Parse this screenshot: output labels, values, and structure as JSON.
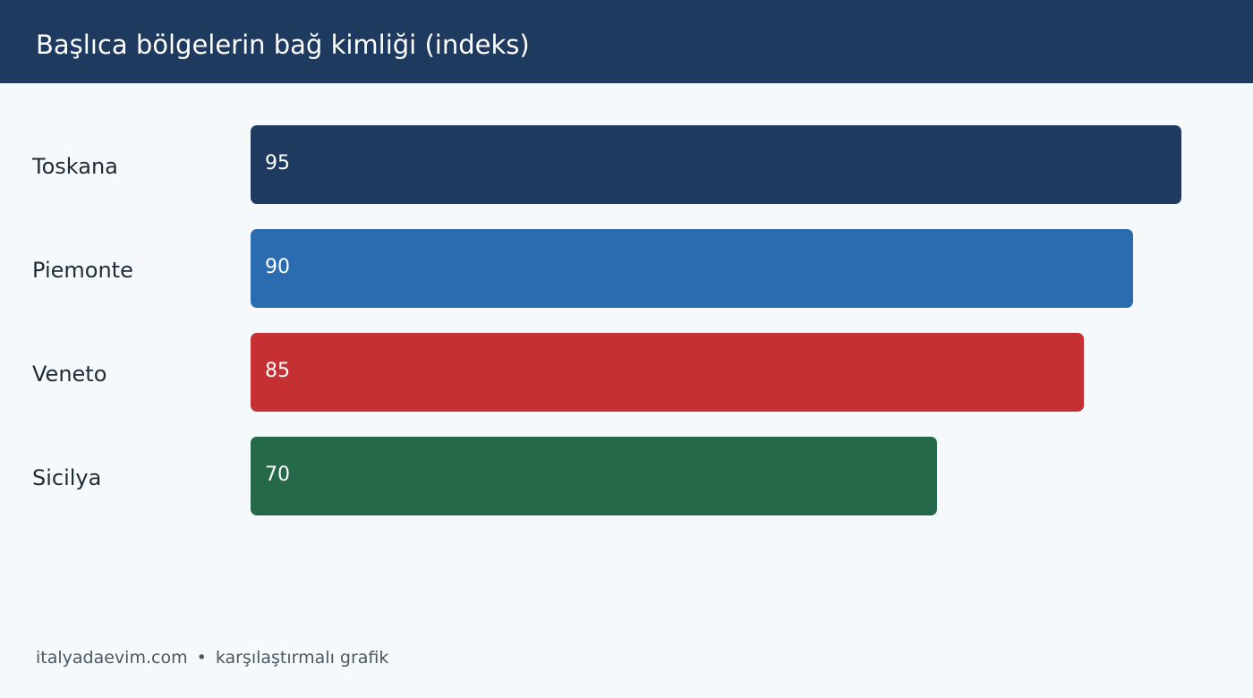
{
  "header": {
    "title": "Başlıca bölgelerin bağ kimliği (indeks)"
  },
  "chart_data": {
    "type": "bar",
    "orientation": "horizontal",
    "categories": [
      "Toskana",
      "Piemonte",
      "Veneto",
      "Sicilya"
    ],
    "values": [
      95,
      90,
      85,
      70
    ],
    "colors": [
      "#1f3a5f",
      "#2b6cb0",
      "#c53032",
      "#25684a"
    ],
    "value_labels": [
      "95",
      "90",
      "85",
      "70"
    ],
    "xlim": [
      0,
      100
    ],
    "grid": false
  },
  "footer": {
    "site": "italyadaevim.com",
    "separator": "•",
    "caption": "karşılaştırmalı grafik"
  }
}
